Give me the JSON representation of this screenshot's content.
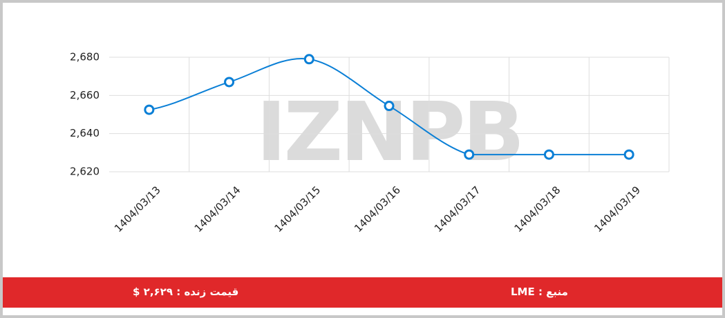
{
  "chart_data": {
    "type": "line",
    "categories": [
      "1404/03/13",
      "1404/03/14",
      "1404/03/15",
      "1404/03/16",
      "1404/03/17",
      "1404/03/18",
      "1404/03/19"
    ],
    "series": [
      {
        "color": "#0a7fd6",
        "values": [
          2652.5,
          2667,
          2679,
          2654.5,
          2629,
          2629,
          2629
        ]
      }
    ],
    "ylim": [
      2620,
      2680
    ],
    "yticks": [
      {
        "value": 2620,
        "label": "2,620"
      },
      {
        "value": 2640,
        "label": "2,640"
      },
      {
        "value": 2660,
        "label": "2,660"
      },
      {
        "value": 2680,
        "label": "2,680"
      }
    ],
    "grid": true,
    "watermark": "IZNPB"
  },
  "footer": {
    "live_price": "قیمت زنده : ۲,۶۲۹ $",
    "source": "منبع : LME"
  }
}
